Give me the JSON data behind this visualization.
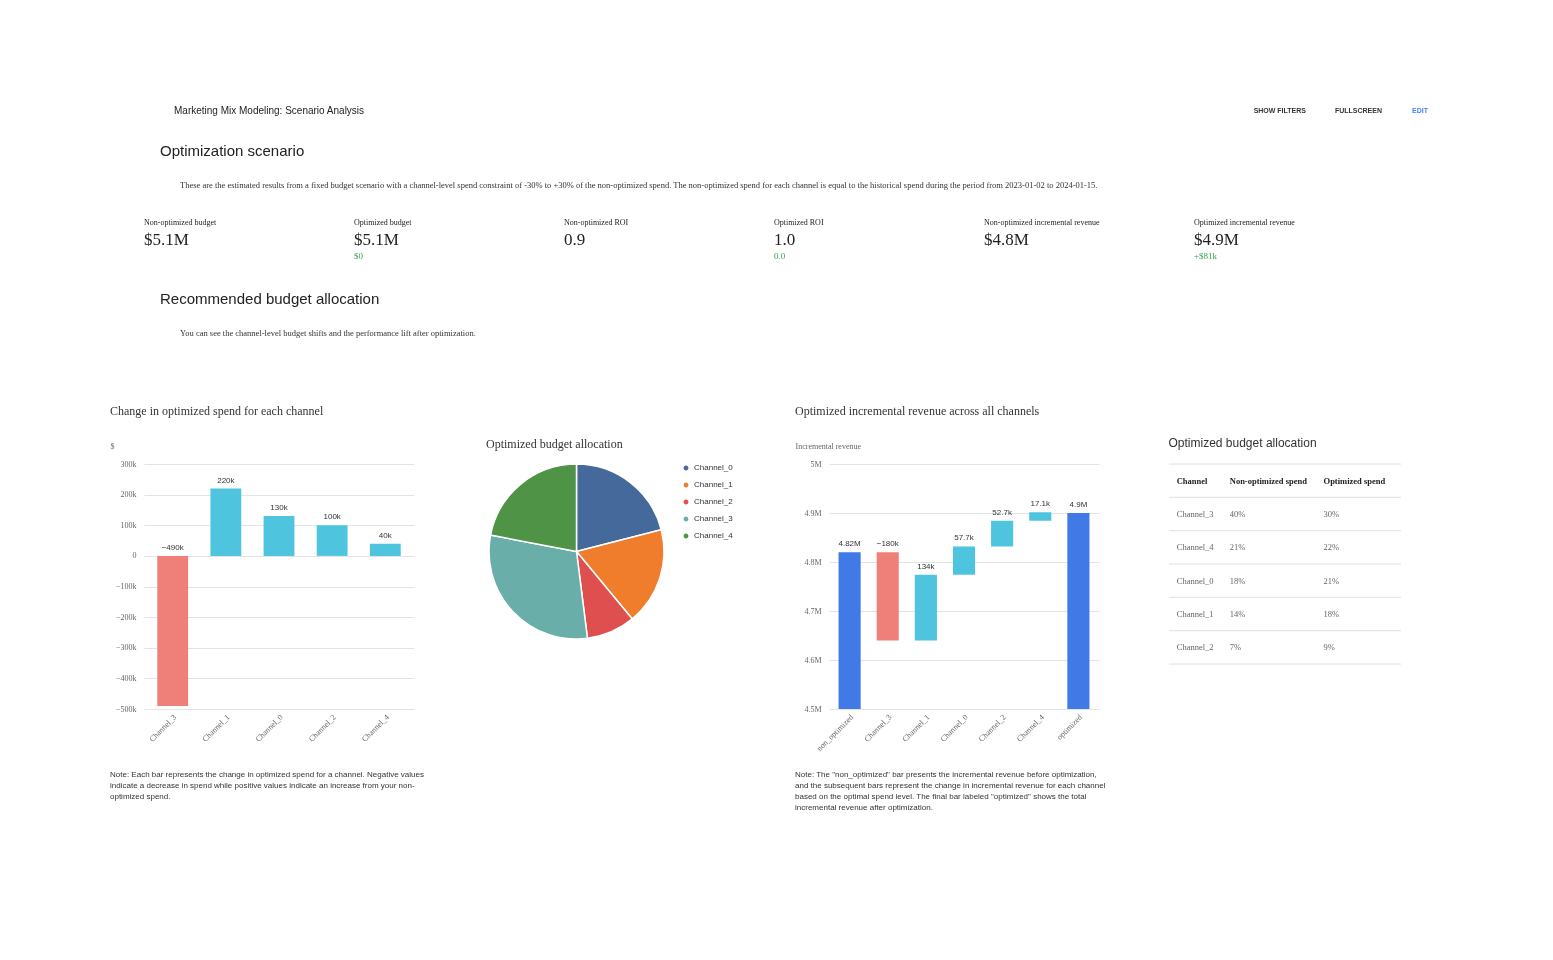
{
  "chart_data": [
    {
      "type": "other",
      "title": "Marketing Mix Modeling: Scenario Analysis",
      "annotations": [
        "SHOW FILTERS",
        "FULLSCREEN",
        "EDIT"
      ]
    },
    {
      "type": "other",
      "title": "Optimization scenario",
      "subtitle": "These are the estimated results from a fixed budget scenario with a channel-level spend constraint of -30% to +30% of the non-optimized spend. The non-optimized spend for each channel is equal to the historical spend during the period from 2023-01-02 to 2024-01-15."
    },
    {
      "type": "other",
      "title": "Non-optimized budget",
      "annotations": [
        "$5.1M"
      ]
    },
    {
      "type": "other",
      "title": "Optimized budget",
      "annotations": [
        "$5.1M",
        "$0"
      ]
    },
    {
      "type": "other",
      "title": "Non-optimized ROI",
      "annotations": [
        "0.9"
      ]
    },
    {
      "type": "other",
      "title": "Optimized ROI",
      "annotations": [
        "1.0",
        "0.0"
      ]
    },
    {
      "type": "other",
      "title": "Non-optimized incremental revenue",
      "annotations": [
        "$4.8M"
      ]
    },
    {
      "type": "other",
      "title": "Optimized incremental revenue",
      "annotations": [
        "$4.9M",
        "+$81k"
      ]
    },
    {
      "type": "other",
      "title": "Recommended budget allocation",
      "subtitle": "You can see the channel-level budget shifts and the performance lift after optimization."
    },
    {
      "type": "bar",
      "title": "Change in optimized spend for each channel",
      "ylabel": "$",
      "categories": [
        "Channel_3",
        "Channel_1",
        "Channel_0",
        "Channel_2",
        "Channel_4"
      ],
      "values": [
        -490000,
        220000,
        130000,
        100000,
        40000
      ],
      "colors": [
        "#ef8079",
        "#4fc4de",
        "#4fc4de",
        "#4fc4de",
        "#4fc4de"
      ],
      "value_labels": [
        "−490k",
        "220k",
        "130k",
        "100k",
        "40k"
      ],
      "ylim": [
        -500000,
        300000
      ],
      "yticks": [
        {
          "value": -500000,
          "label": "−500k"
        },
        {
          "value": -400000,
          "label": "−400k"
        },
        {
          "value": -300000,
          "label": "−300k"
        },
        {
          "value": -200000,
          "label": "−200k"
        },
        {
          "value": -100000,
          "label": "−100k"
        },
        0,
        {
          "value": 100000,
          "label": "100k"
        },
        {
          "value": 200000,
          "label": "200k"
        },
        {
          "value": 300000,
          "label": "300k"
        }
      ],
      "grid": "y",
      "annotations": [
        "Note: Each bar represents the change in optimized spend for a channel. Negative values indicate a decrease in spend while positive values indicate an increase from your non-optimized spend."
      ]
    },
    {
      "type": "pie",
      "title": "Optimized budget allocation",
      "categories": [
        "Channel_0",
        "Channel_1",
        "Channel_2",
        "Channel_3",
        "Channel_4"
      ],
      "values": [
        21,
        18,
        9,
        30,
        22
      ],
      "colors": [
        "#44699a",
        "#ef7d2c",
        "#df4f4f",
        "#6aaea9",
        "#4f9346"
      ],
      "legend": "right"
    },
    {
      "type": "bar",
      "title": "Optimized incremental revenue across all channels",
      "ylabel": "Incremental revenue",
      "categories": [
        "non_optimized",
        "Channel_3",
        "Channel_1",
        "Channel_0",
        "Channel_2",
        "Channel_4",
        "optimized"
      ],
      "values": [
        4820000,
        -180000,
        134000,
        57700,
        52700,
        17100,
        4900000
      ],
      "base": [
        null,
        4820000,
        4640000,
        4774000,
        4831700,
        4884400,
        null
      ],
      "colors": [
        "#4179e6",
        "#ef8079",
        "#4fc4de",
        "#4fc4de",
        "#4fc4de",
        "#4fc4de",
        "#4179e6"
      ],
      "value_labels": [
        "4.82M",
        "−180k",
        "134k",
        "57.7k",
        "52.7k",
        "17.1k",
        "4.9M"
      ],
      "ylim": [
        4500000,
        5000000
      ],
      "yticks": [
        {
          "value": 4500000,
          "label": "4.5M"
        },
        {
          "value": 4600000,
          "label": "4.6M"
        },
        {
          "value": 4700000,
          "label": "4.7M"
        },
        {
          "value": 4800000,
          "label": "4.8M"
        },
        {
          "value": 4900000,
          "label": "4.9M"
        },
        {
          "value": 5000000,
          "label": "5M"
        }
      ],
      "grid": "y",
      "annotations": [
        "Note: The \"non_optimized\" bar presents the incremental revenue before optimization, and the subsequent bars represent the change in incremental revenue for each channel based on the optimal spend level. The final bar labeled \"optimized\" shows the total incremental revenue after optimization."
      ]
    },
    {
      "type": "other",
      "title": "Optimized budget allocation",
      "categories": [
        "Channel",
        "Non-optimized spend",
        "Optimized spend"
      ],
      "annotations": [
        "Channel_3",
        "40%",
        "30%",
        "Channel_4",
        "21%",
        "22%",
        "Channel_0",
        "18%",
        "21%",
        "Channel_1",
        "14%",
        "18%",
        "Channel_2",
        "7%",
        "9%"
      ]
    }
  ]
}
